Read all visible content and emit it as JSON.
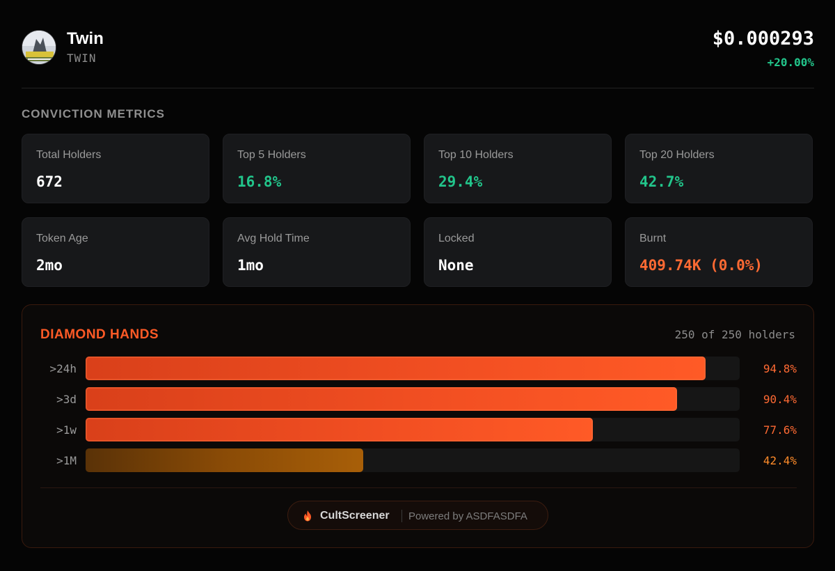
{
  "token": {
    "name": "Twin",
    "symbol": "TWIN",
    "price": "$0.000293",
    "change": "+20.00%"
  },
  "section_title": "CONVICTION METRICS",
  "metrics": [
    {
      "label": "Total Holders",
      "value": "672",
      "tone": "white"
    },
    {
      "label": "Top 5 Holders",
      "value": "16.8%",
      "tone": "green"
    },
    {
      "label": "Top 10 Holders",
      "value": "29.4%",
      "tone": "green"
    },
    {
      "label": "Top 20 Holders",
      "value": "42.7%",
      "tone": "green"
    },
    {
      "label": "Token Age",
      "value": "2mo",
      "tone": "white"
    },
    {
      "label": "Avg Hold Time",
      "value": "1mo",
      "tone": "white"
    },
    {
      "label": "Locked",
      "value": "None",
      "tone": "white"
    },
    {
      "label": "Burnt",
      "value": "409.74K (0.0%)",
      "tone": "orange"
    }
  ],
  "diamond_hands": {
    "title": "DIAMOND HANDS",
    "count": "250 of 250 holders",
    "bars": [
      {
        "label": ">24h",
        "percent": 94.8,
        "percent_label": "94.8%"
      },
      {
        "label": ">3d",
        "percent": 90.4,
        "percent_label": "90.4%"
      },
      {
        "label": ">1w",
        "percent": 77.6,
        "percent_label": "77.6%"
      },
      {
        "label": ">1M",
        "percent": 42.4,
        "percent_label": "42.4%"
      }
    ]
  },
  "footer": {
    "brand": "CultScreener",
    "powered": "Powered by ASDFASDFA",
    "icon": "flame-icon"
  },
  "colors": {
    "green": "#22c58b",
    "orange": "#ff5a26",
    "amber": "#a85f08"
  }
}
